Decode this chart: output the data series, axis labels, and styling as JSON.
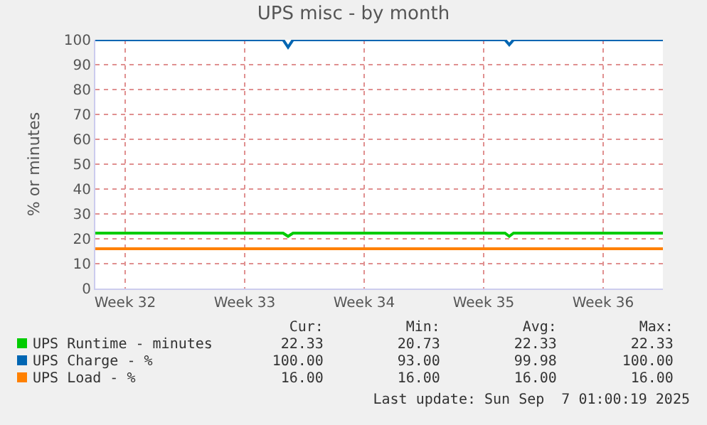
{
  "chart_data": {
    "type": "line",
    "title": "UPS misc - by month",
    "ylabel": "% or minutes",
    "x": [
      "2025-08-04T18:00",
      "2025-08-15T18:00",
      "2025-08-16T01:00",
      "2025-08-16T08:00",
      "2025-08-28T18:00",
      "2025-08-29T00:00",
      "2025-08-29T06:00",
      "2025-09-07T00:00"
    ],
    "xlim": [
      "2025-08-04T18:00",
      "2025-09-07T00:00"
    ],
    "xticks": [
      {
        "value": "2025-08-06T12:00",
        "label": "Week 32"
      },
      {
        "value": "2025-08-13T12:00",
        "label": "Week 33"
      },
      {
        "value": "2025-08-20T12:00",
        "label": "Week 34"
      },
      {
        "value": "2025-08-27T12:00",
        "label": "Week 35"
      },
      {
        "value": "2025-09-03T12:00",
        "label": "Week 36"
      }
    ],
    "ylim": [
      0,
      100
    ],
    "yticks": [
      0,
      10,
      20,
      30,
      40,
      50,
      60,
      70,
      80,
      90,
      100
    ],
    "series": [
      {
        "name": "UPS Runtime - minutes",
        "color": "#00cc00",
        "values": [
          22.3,
          22.3,
          21,
          22.3,
          22.3,
          21,
          22.3,
          22.3
        ]
      },
      {
        "name": "UPS Charge - %",
        "color": "#0066b3",
        "values": [
          100,
          100,
          97,
          100,
          100,
          98,
          100,
          100
        ]
      },
      {
        "name": "UPS Load - %",
        "color": "#ff8000",
        "values": [
          16,
          16,
          16,
          16,
          16,
          16,
          16,
          16
        ]
      }
    ],
    "grid": true,
    "legend": "bottom",
    "marker": "none",
    "line_style": "solid",
    "annotations": [
      "Cur:",
      "Min:",
      "Avg:",
      "Max:",
      "22.33",
      "20.73",
      "22.33",
      "22.33",
      "100.00",
      "93.00",
      "99.98",
      "100.00",
      "16.00",
      "16.00",
      "16.00",
      "16.00",
      "Last update: Sun Sep  7 01:00:19 2025"
    ]
  }
}
